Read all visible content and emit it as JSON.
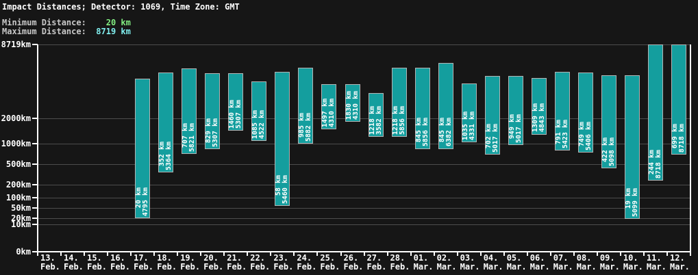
{
  "window": {
    "title": "Impact Distances; Detector: 1069, Time Zone: GMT"
  },
  "summary": {
    "min_label": "Minimum Distance:",
    "min_value": "20 km",
    "max_label": "Maximum Distance:",
    "max_value": "8719 km"
  },
  "colors": {
    "background": "#161616",
    "bar_fill": "#149e9e",
    "bar_border": "#b4b4b4",
    "grid": "#4d4d4d",
    "axis": "#ffffff",
    "text": "#ffffff",
    "header_label": "#c8c8c8",
    "min_value_color": "#82ee82",
    "max_value_color": "#80eeee"
  },
  "chart_data": {
    "type": "bar",
    "variant": "vertical floating range bars (daily min-max impact distance)",
    "title": "Impact Distances; Detector: 1069, Time Zone: GMT",
    "unit": "km",
    "legend": "none",
    "y_axis": {
      "scale": "power-0.3 pseudo-log",
      "lim": [
        0,
        8719
      ],
      "ticks": [
        8719,
        2000,
        1000,
        500,
        200,
        100,
        50,
        20,
        10,
        0
      ],
      "tick_labels": [
        "8719km",
        "2000km",
        "1000km",
        "500km",
        "200km",
        "100km",
        "50km",
        "20km",
        "10km",
        "0km"
      ],
      "grid": true
    },
    "x_axis": {
      "categories": [
        {
          "line1": "13.",
          "line2": "Feb."
        },
        {
          "line1": "14.",
          "line2": "Feb."
        },
        {
          "line1": "15.",
          "line2": "Feb."
        },
        {
          "line1": "16.",
          "line2": "Feb."
        },
        {
          "line1": "17.",
          "line2": "Feb."
        },
        {
          "line1": "18.",
          "line2": "Feb."
        },
        {
          "line1": "19.",
          "line2": "Feb."
        },
        {
          "line1": "20.",
          "line2": "Feb."
        },
        {
          "line1": "21.",
          "line2": "Feb."
        },
        {
          "line1": "22.",
          "line2": "Feb."
        },
        {
          "line1": "23.",
          "line2": "Feb."
        },
        {
          "line1": "24.",
          "line2": "Feb."
        },
        {
          "line1": "25.",
          "line2": "Feb."
        },
        {
          "line1": "26.",
          "line2": "Feb."
        },
        {
          "line1": "27.",
          "line2": "Feb."
        },
        {
          "line1": "28.",
          "line2": "Feb."
        },
        {
          "line1": "01.",
          "line2": "Mar."
        },
        {
          "line1": "02.",
          "line2": "Mar."
        },
        {
          "line1": "03.",
          "line2": "Mar."
        },
        {
          "line1": "04.",
          "line2": "Mar."
        },
        {
          "line1": "05.",
          "line2": "Mar."
        },
        {
          "line1": "06.",
          "line2": "Mar."
        },
        {
          "line1": "07.",
          "line2": "Mar."
        },
        {
          "line1": "08.",
          "line2": "Mar."
        },
        {
          "line1": "09.",
          "line2": "Mar."
        },
        {
          "line1": "10.",
          "line2": "Mar."
        },
        {
          "line1": "11.",
          "line2": "Mar."
        },
        {
          "line1": "12.",
          "line2": "Mar."
        }
      ]
    },
    "bars": [
      {
        "index": 4,
        "date": "17. Feb.",
        "min": 20,
        "max": 4795
      },
      {
        "index": 5,
        "date": "18. Feb.",
        "min": 352,
        "max": 5364
      },
      {
        "index": 6,
        "date": "19. Feb.",
        "min": 707,
        "max": 5821
      },
      {
        "index": 7,
        "date": "20. Feb.",
        "min": 829,
        "max": 5307
      },
      {
        "index": 8,
        "date": "21. Feb.",
        "min": 1460,
        "max": 5307
      },
      {
        "index": 9,
        "date": "22. Feb.",
        "min": 1085,
        "max": 4522
      },
      {
        "index": 10,
        "date": "23. Feb.",
        "min": 58,
        "max": 5460
      },
      {
        "index": 11,
        "date": "24. Feb.",
        "min": 985,
        "max": 5882
      },
      {
        "index": 12,
        "date": "25. Feb.",
        "min": 1497,
        "max": 4310
      },
      {
        "index": 13,
        "date": "26. Feb.",
        "min": 1830,
        "max": 4310
      },
      {
        "index": 14,
        "date": "27. Feb.",
        "min": 1218,
        "max": 3582
      },
      {
        "index": 15,
        "date": "28. Feb.",
        "min": 1218,
        "max": 5856
      },
      {
        "index": 16,
        "date": "01. Mar.",
        "min": 845,
        "max": 5856
      },
      {
        "index": 17,
        "date": "02. Mar.",
        "min": 845,
        "max": 6382
      },
      {
        "index": 18,
        "date": "03. Mar.",
        "min": 1035,
        "max": 4331
      },
      {
        "index": 19,
        "date": "04. Mar.",
        "min": 702,
        "max": 5017
      },
      {
        "index": 20,
        "date": "05. Mar.",
        "min": 949,
        "max": 5017
      },
      {
        "index": 21,
        "date": "06. Mar.",
        "min": 1309,
        "max": 4843
      },
      {
        "index": 22,
        "date": "07. Mar.",
        "min": 791,
        "max": 5423
      },
      {
        "index": 23,
        "date": "08. Mar.",
        "min": 749,
        "max": 5406
      },
      {
        "index": 24,
        "date": "09. Mar.",
        "min": 422,
        "max": 5098
      },
      {
        "index": 25,
        "date": "10. Mar.",
        "min": 19,
        "max": 5099
      },
      {
        "index": 26,
        "date": "11. Mar.",
        "min": 244,
        "max": 8718
      },
      {
        "index": 27,
        "date": "12. Mar.",
        "min": 699,
        "max": 8718
      }
    ]
  }
}
